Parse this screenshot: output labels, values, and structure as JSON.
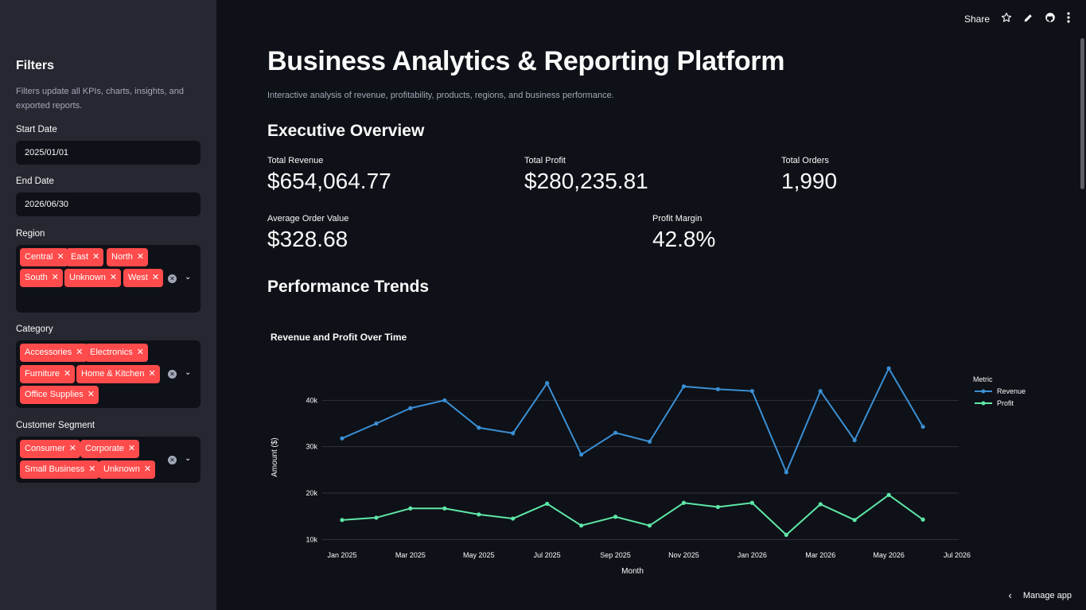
{
  "sidebar": {
    "title": "Filters",
    "description": "Filters update all KPIs, charts, insights, and exported reports.",
    "start_date": {
      "label": "Start Date",
      "value": "2025/01/01"
    },
    "end_date": {
      "label": "End Date",
      "value": "2026/06/30"
    },
    "region": {
      "label": "Region",
      "tags": [
        "Central",
        "East",
        "North",
        "South",
        "Unknown",
        "West"
      ]
    },
    "category": {
      "label": "Category",
      "tags": [
        "Accessories",
        "Electronics",
        "Furniture",
        "Home & Kitchen",
        "Office Supplies"
      ]
    },
    "segment": {
      "label": "Customer Segment",
      "tags": [
        "Consumer",
        "Corporate",
        "Small Business",
        "Unknown"
      ]
    },
    "tag_color": "#ff4b4b"
  },
  "toolbar": {
    "share": "Share",
    "icons": [
      "star-icon",
      "edit-pencil-icon",
      "github-icon",
      "more-vertical-icon"
    ]
  },
  "header": {
    "title": "Business Analytics & Reporting Platform",
    "subtitle": "Interactive analysis of revenue, profitability, products, regions, and business performance."
  },
  "overview": {
    "heading": "Executive Overview",
    "kpis": [
      {
        "label": "Total Revenue",
        "value": "$654,064.77"
      },
      {
        "label": "Total Profit",
        "value": "$280,235.81"
      },
      {
        "label": "Total Orders",
        "value": "1,990"
      },
      {
        "label": "Average Order Value",
        "value": "$328.68"
      },
      {
        "label": "Profit Margin",
        "value": "42.8%"
      }
    ]
  },
  "trends": {
    "heading": "Performance Trends"
  },
  "chart_data": {
    "type": "line",
    "title": "Revenue and Profit Over Time",
    "xlabel": "Month",
    "ylabel": "Amount ($)",
    "legend_title": "Metric",
    "legend_position": "top-right",
    "x": [
      "2025-01",
      "2025-02",
      "2025-03",
      "2025-04",
      "2025-05",
      "2025-06",
      "2025-07",
      "2025-08",
      "2025-09",
      "2025-10",
      "2025-11",
      "2025-12",
      "2026-01",
      "2026-02",
      "2026-03",
      "2026-04",
      "2026-05",
      "2026-06"
    ],
    "x_ticks": [
      "Jan 2025",
      "Mar 2025",
      "May 2025",
      "Jul 2025",
      "Sep 2025",
      "Nov 2025",
      "Jan 2026",
      "Mar 2026",
      "May 2026",
      "Jul 2026"
    ],
    "y_ticks": [
      "10k",
      "20k",
      "30k",
      "40k"
    ],
    "ylim": [
      8000,
      50000
    ],
    "grid": true,
    "series": [
      {
        "name": "Revenue",
        "color": "#3b8fd4",
        "values": [
          31800,
          35000,
          38300,
          40000,
          34100,
          32900,
          43700,
          28300,
          33000,
          31100,
          43000,
          42400,
          42000,
          24500,
          42000,
          31400,
          46900,
          34300
        ]
      },
      {
        "name": "Profit",
        "color": "#5ee8a8",
        "values": [
          14200,
          14700,
          16700,
          16700,
          15400,
          14500,
          17700,
          13000,
          14900,
          13000,
          17900,
          17000,
          17900,
          11000,
          17600,
          14200,
          19600,
          14300
        ]
      }
    ]
  },
  "footer": {
    "manage": "Manage app"
  }
}
